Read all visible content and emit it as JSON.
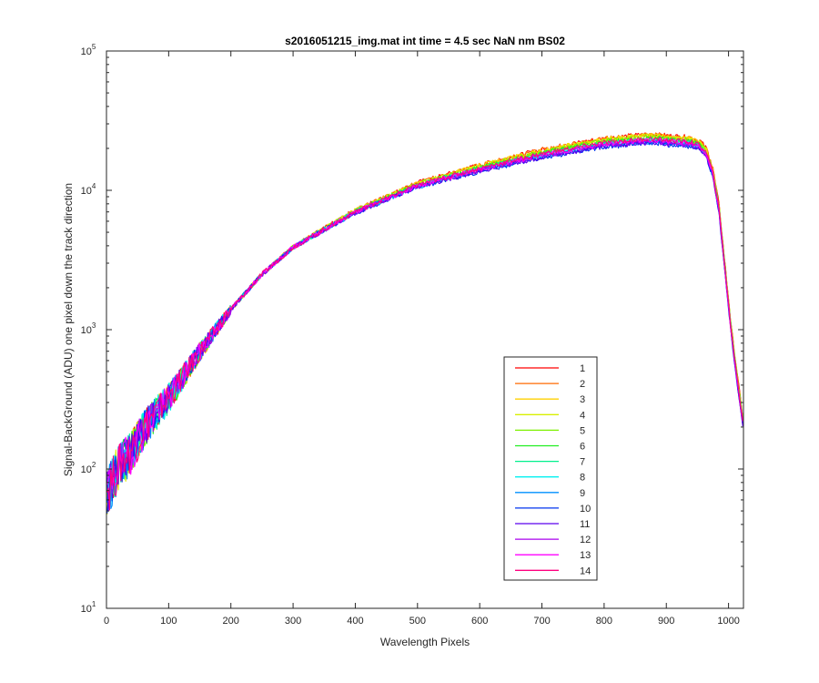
{
  "chart_data": {
    "type": "line",
    "title": "s2016051215_img.mat int time = 4.5 sec  NaN nm BS02",
    "xlabel": "Wavelength Pixels",
    "ylabel": "Signal-BackGround (ADU) one pixel down the track direction",
    "xlim": [
      0,
      1024
    ],
    "ylim": [
      10,
      100000
    ],
    "yscale": "log",
    "x_ticks": [
      "0",
      "100",
      "200",
      "300",
      "400",
      "500",
      "600",
      "700",
      "800",
      "900",
      "1000"
    ],
    "y_ticks": [
      {
        "base": "10",
        "exp": "1"
      },
      {
        "base": "10",
        "exp": "2"
      },
      {
        "base": "10",
        "exp": "3"
      },
      {
        "base": "10",
        "exp": "4"
      },
      {
        "base": "10",
        "exp": "5"
      }
    ],
    "grid": false,
    "legend_position": "lower-right",
    "reference_profile": {
      "x": [
        0,
        10,
        20,
        40,
        60,
        80,
        100,
        150,
        200,
        250,
        300,
        400,
        500,
        600,
        700,
        800,
        870,
        900,
        940,
        955,
        965,
        975,
        985,
        995,
        1005,
        1015,
        1024
      ],
      "y": [
        70,
        90,
        110,
        140,
        200,
        260,
        330,
        700,
        1400,
        2500,
        3900,
        7000,
        10800,
        14200,
        18000,
        21500,
        23000,
        22500,
        21800,
        20500,
        18000,
        13000,
        7000,
        2500,
        900,
        400,
        200
      ]
    },
    "series": [
      {
        "name": "1",
        "color": "#ff0000",
        "scale": 1.1
      },
      {
        "name": "2",
        "color": "#ff6a00",
        "scale": 1.09
      },
      {
        "name": "3",
        "color": "#ffd000",
        "scale": 1.08
      },
      {
        "name": "4",
        "color": "#d9ef00",
        "scale": 1.07
      },
      {
        "name": "5",
        "color": "#7cf000",
        "scale": 1.05
      },
      {
        "name": "6",
        "color": "#22ee22",
        "scale": 1.03
      },
      {
        "name": "7",
        "color": "#00f08c",
        "scale": 1.01
      },
      {
        "name": "8",
        "color": "#00f0f0",
        "scale": 0.99
      },
      {
        "name": "9",
        "color": "#0090ff",
        "scale": 0.97
      },
      {
        "name": "10",
        "color": "#0033ee",
        "scale": 0.95
      },
      {
        "name": "11",
        "color": "#5a00ee",
        "scale": 0.96
      },
      {
        "name": "12",
        "color": "#aa00ee",
        "scale": 0.98
      },
      {
        "name": "13",
        "color": "#ff00ff",
        "scale": 1.0
      },
      {
        "name": "14",
        "color": "#ff0080",
        "scale": 1.02
      }
    ]
  }
}
